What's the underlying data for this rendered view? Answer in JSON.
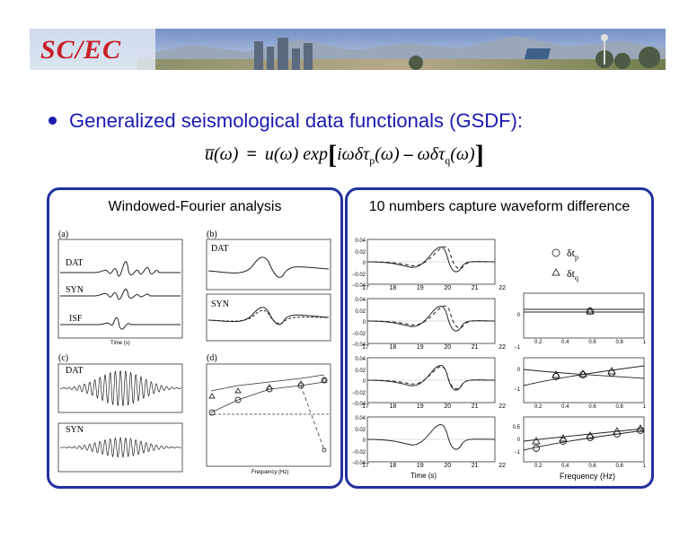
{
  "banner": {
    "logo_text": "SC/EC",
    "colors": {
      "logo": "#c8202a",
      "sky": "#6e8fc8",
      "bg": "#ffffff"
    }
  },
  "bullet": {
    "text": "Generalized seismological data functionals (GSDF):"
  },
  "equation": {
    "lhs": "u̅(ω)",
    "equals": "=",
    "term1": "u(ω) exp",
    "inner1": "iωδτ",
    "sub_p": "p",
    "inner1_tail": "(ω)",
    "minus": "–",
    "inner2": "ωδτ",
    "sub_q": "q",
    "inner2_tail": "(ω)"
  },
  "left_panel": {
    "title": "Windowed-Fourier analysis",
    "labels": {
      "a": "(a)",
      "b": "(b)",
      "c": "(c)",
      "d": "(d)"
    },
    "traces": {
      "dat": "DAT",
      "syn": "SYN",
      "isf": "ISF"
    },
    "xlabel_time": "Time (s)",
    "xlabel_freq": "Frequency (Hz)"
  },
  "right_panel": {
    "title": "10 numbers capture waveform difference",
    "legend": [
      {
        "symbol": "○",
        "label": "δt",
        "sub": "p"
      },
      {
        "symbol": "△",
        "label": "δt",
        "sub": "q"
      }
    ],
    "waveform_yticks": [
      "0.04",
      "0.02",
      "0",
      "−0.02",
      "−0.04"
    ],
    "waveform_xticks": [
      "17",
      "18",
      "19",
      "20",
      "21",
      "22"
    ],
    "waveform_xlabel": "Time (s)",
    "freq_xticks": [
      "0.2",
      "0.4",
      "0.6",
      "0.8",
      "1"
    ],
    "freq_yticks": [
      "0.5",
      "0",
      "−1"
    ],
    "freq_yticks_top": [
      "0",
      "−1"
    ],
    "freq_xlabel": "Frequency (Hz)"
  },
  "colors": {
    "bullet": "#1a1ab0",
    "panel_border": "#2030a0"
  }
}
